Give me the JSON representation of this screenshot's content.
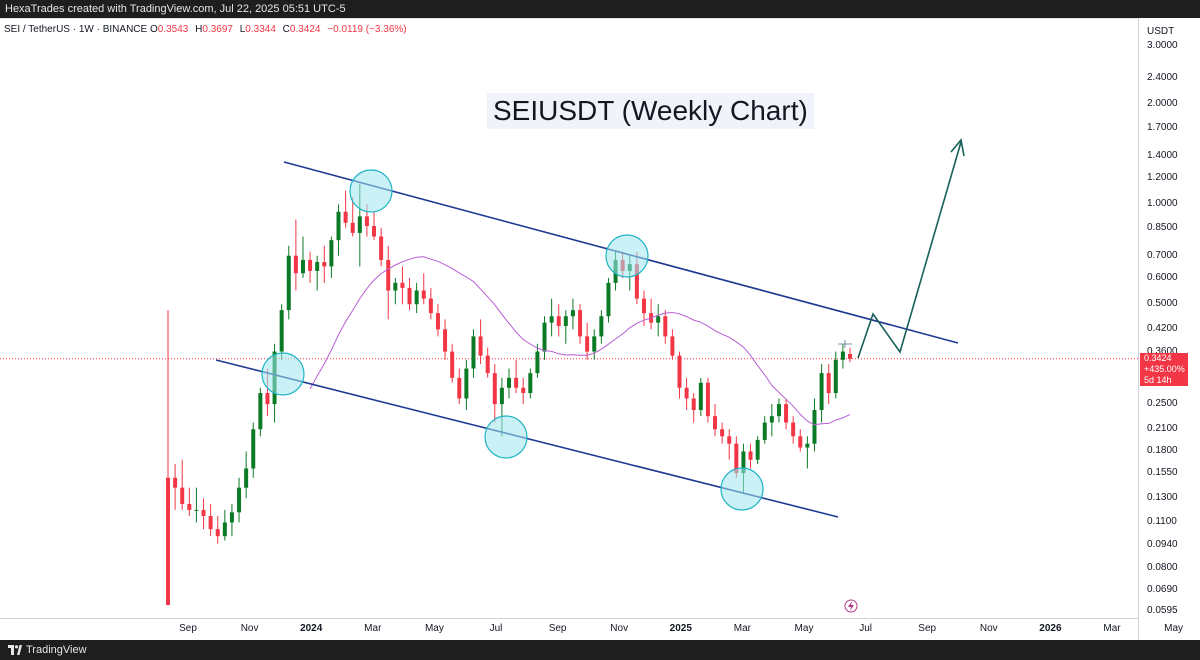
{
  "header": {
    "attribution": "HexaTrades created with TradingView.com, Jul 22, 2025 05:51 UTC-5"
  },
  "symbol": {
    "name": "SEI / TetherUS · 1W · BINANCE",
    "open_label": "O",
    "open": "0.3543",
    "high_label": "H",
    "high": "0.3697",
    "low_label": "L",
    "low": "0.3344",
    "close_label": "C",
    "close": "0.3424",
    "change": "−0.0119 (−3.36%)"
  },
  "price_tag": {
    "price": "0.3424",
    "pct": "+435.00%",
    "countdown": "5d 14h"
  },
  "footer": {
    "brand": "TradingView"
  },
  "colors": {
    "up": "#0b7a26",
    "down": "#f23645",
    "channel": "#1f3a93",
    "ma": "#b85cd6",
    "projection": "#17615a",
    "circle_fill": "#9ee8ee",
    "circle_stroke": "#1fb3c4"
  },
  "chart_data": {
    "type": "candlestick",
    "title": "SEIUSDT (Weekly Chart)",
    "y_scale": "log",
    "y_unit": "USDT",
    "y_ticks": [
      "3.0000",
      "2.4000",
      "2.0000",
      "1.7000",
      "1.4000",
      "1.2000",
      "1.0000",
      "0.8500",
      "0.7000",
      "0.6000",
      "0.5000",
      "0.4200",
      "0.3600",
      "0.2500",
      "0.2100",
      "0.1800",
      "0.1550",
      "0.1300",
      "0.1100",
      "0.0940",
      "0.0800",
      "0.0690",
      "0.0595"
    ],
    "x_ticks": [
      "Sep",
      "Nov",
      "2024",
      "Mar",
      "May",
      "Jul",
      "Sep",
      "Nov",
      "2025",
      "Mar",
      "May",
      "Jul",
      "Sep",
      "Nov",
      "2026",
      "Mar",
      "May"
    ],
    "ohlc_approx": [
      [
        0.15,
        0.48,
        0.062,
        0.062
      ],
      [
        0.15,
        0.165,
        0.12,
        0.14
      ],
      [
        0.14,
        0.17,
        0.12,
        0.125
      ],
      [
        0.125,
        0.14,
        0.115,
        0.12
      ],
      [
        0.12,
        0.14,
        0.11,
        0.12
      ],
      [
        0.12,
        0.13,
        0.105,
        0.115
      ],
      [
        0.115,
        0.125,
        0.1,
        0.105
      ],
      [
        0.105,
        0.115,
        0.095,
        0.1
      ],
      [
        0.1,
        0.12,
        0.097,
        0.11
      ],
      [
        0.11,
        0.125,
        0.1,
        0.118
      ],
      [
        0.118,
        0.15,
        0.11,
        0.14
      ],
      [
        0.14,
        0.18,
        0.13,
        0.16
      ],
      [
        0.16,
        0.22,
        0.15,
        0.21
      ],
      [
        0.21,
        0.28,
        0.2,
        0.27
      ],
      [
        0.27,
        0.32,
        0.23,
        0.25
      ],
      [
        0.25,
        0.38,
        0.22,
        0.36
      ],
      [
        0.36,
        0.5,
        0.34,
        0.48
      ],
      [
        0.48,
        0.75,
        0.45,
        0.7
      ],
      [
        0.7,
        0.9,
        0.55,
        0.62
      ],
      [
        0.62,
        0.8,
        0.6,
        0.68
      ],
      [
        0.68,
        0.72,
        0.58,
        0.63
      ],
      [
        0.63,
        0.7,
        0.55,
        0.67
      ],
      [
        0.67,
        0.75,
        0.58,
        0.65
      ],
      [
        0.65,
        0.8,
        0.6,
        0.78
      ],
      [
        0.78,
        1.0,
        0.7,
        0.95
      ],
      [
        0.95,
        1.1,
        0.85,
        0.88
      ],
      [
        0.88,
        1.05,
        0.8,
        0.82
      ],
      [
        0.82,
        1.15,
        0.65,
        0.92
      ],
      [
        0.92,
        1.0,
        0.8,
        0.86
      ],
      [
        0.86,
        0.95,
        0.78,
        0.8
      ],
      [
        0.8,
        0.85,
        0.65,
        0.68
      ],
      [
        0.68,
        0.75,
        0.45,
        0.55
      ],
      [
        0.55,
        0.6,
        0.5,
        0.58
      ],
      [
        0.58,
        0.65,
        0.5,
        0.56
      ],
      [
        0.56,
        0.6,
        0.48,
        0.5
      ],
      [
        0.5,
        0.58,
        0.47,
        0.55
      ],
      [
        0.55,
        0.62,
        0.5,
        0.52
      ],
      [
        0.52,
        0.56,
        0.45,
        0.47
      ],
      [
        0.47,
        0.5,
        0.4,
        0.42
      ],
      [
        0.42,
        0.45,
        0.34,
        0.36
      ],
      [
        0.36,
        0.38,
        0.29,
        0.3
      ],
      [
        0.3,
        0.32,
        0.25,
        0.26
      ],
      [
        0.26,
        0.34,
        0.24,
        0.32
      ],
      [
        0.32,
        0.42,
        0.3,
        0.4
      ],
      [
        0.4,
        0.45,
        0.33,
        0.35
      ],
      [
        0.35,
        0.37,
        0.3,
        0.31
      ],
      [
        0.31,
        0.33,
        0.22,
        0.25
      ],
      [
        0.25,
        0.3,
        0.2,
        0.28
      ],
      [
        0.28,
        0.32,
        0.26,
        0.3
      ],
      [
        0.3,
        0.34,
        0.27,
        0.28
      ],
      [
        0.28,
        0.3,
        0.25,
        0.27
      ],
      [
        0.27,
        0.32,
        0.26,
        0.31
      ],
      [
        0.31,
        0.38,
        0.3,
        0.36
      ],
      [
        0.36,
        0.46,
        0.34,
        0.44
      ],
      [
        0.44,
        0.52,
        0.4,
        0.46
      ],
      [
        0.46,
        0.5,
        0.4,
        0.43
      ],
      [
        0.43,
        0.48,
        0.38,
        0.46
      ],
      [
        0.46,
        0.52,
        0.42,
        0.48
      ],
      [
        0.48,
        0.5,
        0.38,
        0.4
      ],
      [
        0.4,
        0.44,
        0.34,
        0.36
      ],
      [
        0.36,
        0.42,
        0.34,
        0.4
      ],
      [
        0.4,
        0.48,
        0.38,
        0.46
      ],
      [
        0.46,
        0.6,
        0.44,
        0.58
      ],
      [
        0.58,
        0.72,
        0.55,
        0.68
      ],
      [
        0.68,
        0.72,
        0.6,
        0.63
      ],
      [
        0.63,
        0.7,
        0.55,
        0.66
      ],
      [
        0.66,
        0.72,
        0.5,
        0.52
      ],
      [
        0.52,
        0.55,
        0.43,
        0.47
      ],
      [
        0.47,
        0.52,
        0.42,
        0.44
      ],
      [
        0.44,
        0.5,
        0.4,
        0.46
      ],
      [
        0.46,
        0.48,
        0.38,
        0.4
      ],
      [
        0.4,
        0.42,
        0.34,
        0.35
      ],
      [
        0.35,
        0.36,
        0.26,
        0.28
      ],
      [
        0.28,
        0.3,
        0.24,
        0.26
      ],
      [
        0.26,
        0.27,
        0.22,
        0.24
      ],
      [
        0.24,
        0.3,
        0.23,
        0.29
      ],
      [
        0.29,
        0.3,
        0.22,
        0.23
      ],
      [
        0.23,
        0.25,
        0.2,
        0.21
      ],
      [
        0.21,
        0.22,
        0.19,
        0.2
      ],
      [
        0.2,
        0.21,
        0.17,
        0.19
      ],
      [
        0.19,
        0.2,
        0.15,
        0.155
      ],
      [
        0.155,
        0.19,
        0.135,
        0.18
      ],
      [
        0.18,
        0.19,
        0.16,
        0.17
      ],
      [
        0.17,
        0.2,
        0.165,
        0.195
      ],
      [
        0.195,
        0.23,
        0.19,
        0.22
      ],
      [
        0.22,
        0.25,
        0.2,
        0.23
      ],
      [
        0.23,
        0.26,
        0.22,
        0.25
      ],
      [
        0.25,
        0.26,
        0.21,
        0.22
      ],
      [
        0.22,
        0.23,
        0.19,
        0.2
      ],
      [
        0.2,
        0.21,
        0.18,
        0.185
      ],
      [
        0.185,
        0.2,
        0.16,
        0.19
      ],
      [
        0.19,
        0.26,
        0.18,
        0.24
      ],
      [
        0.24,
        0.33,
        0.22,
        0.31
      ],
      [
        0.31,
        0.33,
        0.25,
        0.27
      ],
      [
        0.27,
        0.36,
        0.26,
        0.34
      ],
      [
        0.34,
        0.38,
        0.32,
        0.36
      ],
      [
        0.3543,
        0.3697,
        0.3344,
        0.3424
      ]
    ]
  }
}
